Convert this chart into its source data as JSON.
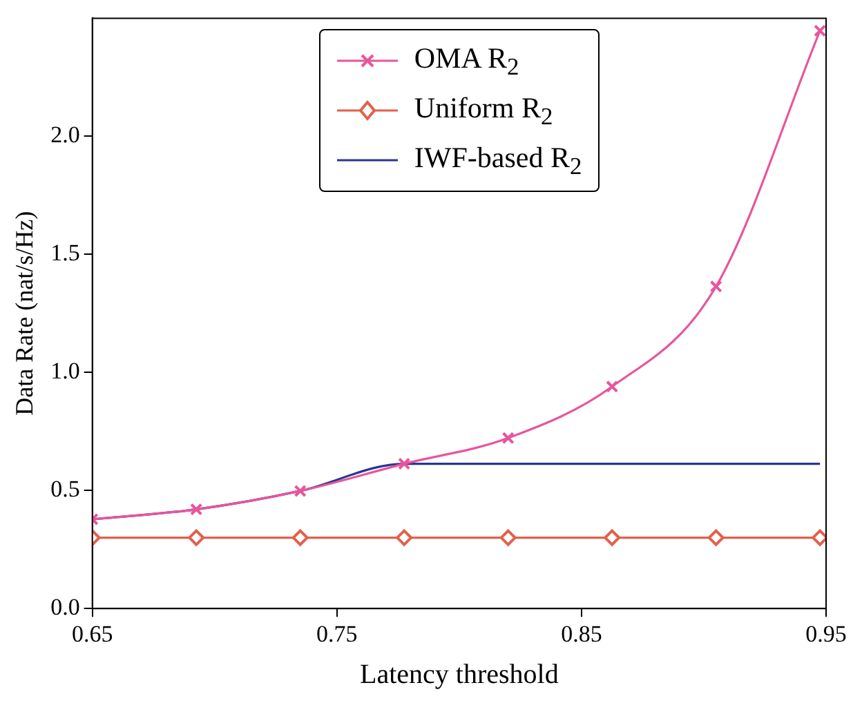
{
  "chart_data": {
    "type": "line",
    "xlabel": "Latency threshold",
    "ylabel": "Data Rate (nat/s/Hz)",
    "x": [
      0.65,
      0.6925,
      0.735,
      0.7775,
      0.82,
      0.8625,
      0.905,
      0.9475
    ],
    "series": [
      {
        "name": "OMA R$_{2}$",
        "color": "#e8559c",
        "marker": "cross",
        "values": [
          0.378,
          0.42,
          0.498,
          0.613,
          0.722,
          0.94,
          1.364,
          2.447
        ]
      },
      {
        "name": "Uniform R$_{2}$",
        "color": "#e2604a",
        "marker": "diamond",
        "values": [
          0.3,
          0.3,
          0.3,
          0.3,
          0.3,
          0.3,
          0.3,
          0.3
        ]
      },
      {
        "name": "IWF-based R$_{2}$",
        "color": "#2a3591",
        "marker": "none",
        "values": [
          0.378,
          0.42,
          0.498,
          0.613,
          0.613,
          0.613,
          0.613,
          0.613
        ]
      }
    ],
    "xlim": [
      0.65,
      0.95
    ],
    "xticks": [
      0.65,
      0.75,
      0.85,
      0.95
    ],
    "ylim": [
      0,
      2.5
    ],
    "yticks": [
      {
        "value": 0,
        "label": "0.0"
      },
      {
        "value": 0.5,
        "label": "0.5"
      },
      {
        "value": 1,
        "label": "1.0"
      },
      {
        "value": 1.5,
        "label": "1.5"
      },
      {
        "value": 2,
        "label": "2.0"
      }
    ],
    "grid": false,
    "legend": "top"
  }
}
